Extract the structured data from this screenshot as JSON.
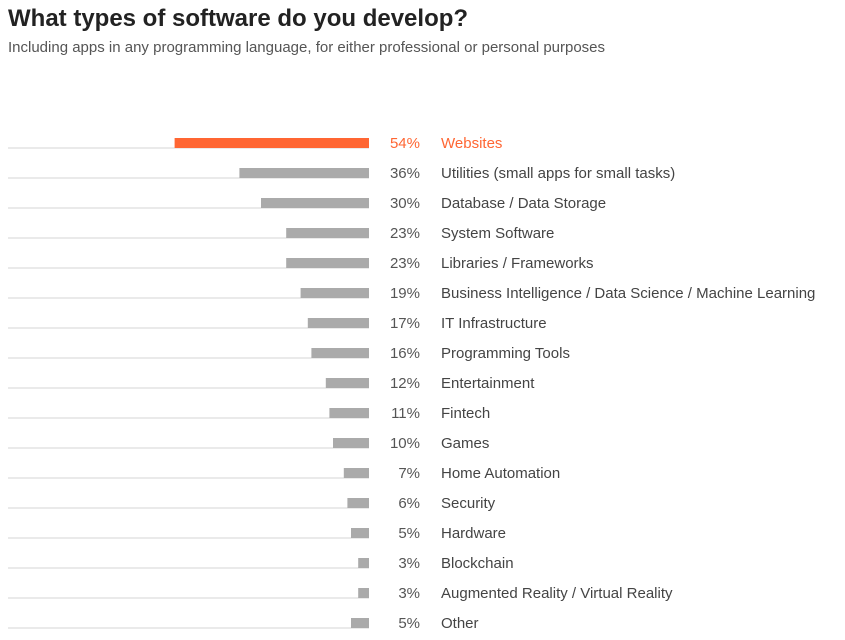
{
  "header": {
    "title": "What types of software do you develop?",
    "subtitle": "Including apps in any programming language, for either professional or personal purposes"
  },
  "colors": {
    "highlight": "#ff6633",
    "bar": "#aaaaaa",
    "track": "#d6d6d6"
  },
  "chart_data": {
    "type": "bar",
    "orientation": "horizontal",
    "title": "What types of software do you develop?",
    "subtitle": "Including apps in any programming language, for either professional or personal purposes",
    "xlim": [
      0,
      100
    ],
    "unit": "%",
    "highlighted_category": "Websites",
    "categories": [
      "Websites",
      "Utilities (small apps for small tasks)",
      "Database / Data Storage",
      "System Software",
      "Libraries / Frameworks",
      "Business Intelligence / Data Science / Machine Learning",
      "IT Infrastructure",
      "Programming Tools",
      "Entertainment",
      "Fintech",
      "Games",
      "Home Automation",
      "Security",
      "Hardware",
      "Blockchain",
      "Augmented Reality / Virtual Reality",
      "Other"
    ],
    "values": [
      54,
      36,
      30,
      23,
      23,
      19,
      17,
      16,
      12,
      11,
      10,
      7,
      6,
      5,
      3,
      3,
      5
    ],
    "value_labels": [
      "54%",
      "36%",
      "30%",
      "23%",
      "23%",
      "19%",
      "17%",
      "16%",
      "12%",
      "11%",
      "10%",
      "7%",
      "6%",
      "5%",
      "3%",
      "3%",
      "5%"
    ],
    "grid": false,
    "legend": "none"
  }
}
